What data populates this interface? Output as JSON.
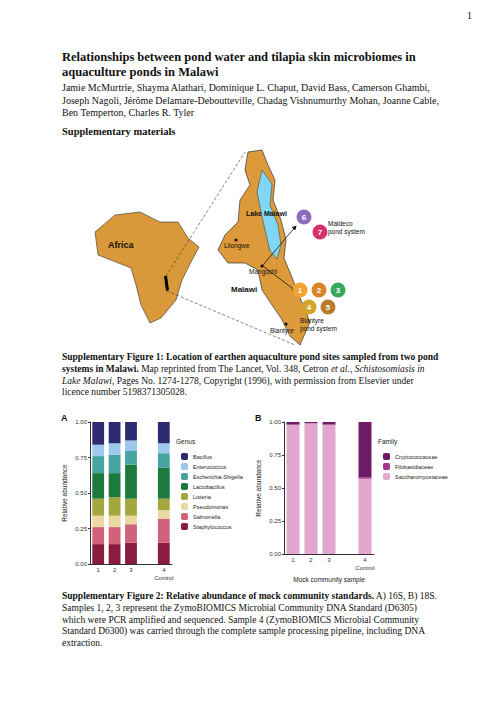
{
  "page_number": "1",
  "title": "Relationships between pond water and tilapia skin microbiomes in aquaculture ponds in Malawi",
  "authors": "Jamie McMurtrie, Shayma Alathari, Dominique L. Chaput, David Bass, Camerson Ghambi, Joseph Nagoli, Jérôme Delamare-Deboutteville, Chadag Vishnumurthy Mohan, Joanne Cable, Ben Temperton, Charles R. Tyler",
  "section": "Supplementary materials",
  "figure1": {
    "map": {
      "labels": {
        "africa": "Africa",
        "lake": "Lake Malawi",
        "capital": "Lilongwe",
        "town": "Mangochi",
        "country": "Malawi",
        "city": "Blantyre",
        "maldeco_system": [
          "Maldeco",
          "pond system"
        ],
        "blantyre_system": [
          "Blantyre",
          "pond system"
        ]
      },
      "sites": [
        {
          "label": "1",
          "color": "#f0a431"
        },
        {
          "label": "2",
          "color": "#d9862a"
        },
        {
          "label": "3",
          "color": "#3aa85a"
        },
        {
          "label": "4",
          "color": "#d4a52a"
        },
        {
          "label": "5",
          "color": "#b97b2c"
        },
        {
          "label": "6",
          "color": "#8e6bbd"
        },
        {
          "label": "7",
          "color": "#d8306c"
        }
      ]
    },
    "caption": [
      {
        "text": "Supplementary Figure 1: Location of earthen aquaculture pond sites sampled from two pond systems in Malawi.",
        "style": "bold"
      },
      {
        "text": " Map reprinted from The Lancet, Vol. 348, Cetron ",
        "style": "normal"
      },
      {
        "text": "et al.",
        "style": "italic"
      },
      {
        "text": ", ",
        "style": "normal"
      },
      {
        "text": "Schistosomiasis in Lake Malawi",
        "style": "italic"
      },
      {
        "text": ", Pages No. 1274-1278, Copyright (1996), with permission from Elsevier under licence number 5198371305028.",
        "style": "normal"
      }
    ]
  },
  "chart_data": [
    {
      "type": "bar",
      "title": "A",
      "stacked": true,
      "grid": false,
      "legend": "right",
      "legend_title": "Genus",
      "y_label": "Relative abundance",
      "categories": [
        "1",
        "2",
        "3",
        null,
        "4"
      ],
      "annotation": "Control",
      "ylim": [
        0,
        1
      ],
      "yticks": [
        {
          "value": 0,
          "label": "0.00"
        },
        {
          "value": 0.25,
          "label": "0.25"
        },
        {
          "value": 0.5,
          "label": "0.50"
        },
        {
          "value": 0.75,
          "label": "0.75"
        },
        {
          "value": 1,
          "label": "1.00"
        }
      ],
      "series": [
        {
          "name": "Bacillus",
          "color": "#2e2a72",
          "values": [
            0.16,
            0.15,
            0.13,
            null,
            0.15
          ]
        },
        {
          "name": "Enterococcus",
          "color": "#9cc9ec",
          "values": [
            0.08,
            0.08,
            0.07,
            null,
            0.07
          ]
        },
        {
          "name": "Escherichia-Shigella",
          "color": "#46a5a0",
          "values": [
            0.12,
            0.13,
            0.1,
            null,
            0.1
          ]
        },
        {
          "name": "Lactobacillus",
          "color": "#1d7a3e",
          "values": [
            0.18,
            0.17,
            0.24,
            null,
            0.22
          ]
        },
        {
          "name": "Listeria",
          "color": "#a3a83e",
          "values": [
            0.12,
            0.13,
            0.12,
            null,
            0.08
          ]
        },
        {
          "name": "Pseudomonas",
          "color": "#ead9a2",
          "values": [
            0.08,
            0.08,
            0.06,
            null,
            0.06
          ]
        },
        {
          "name": "Salmonella",
          "color": "#d2617c",
          "values": [
            0.12,
            0.12,
            0.13,
            null,
            0.17
          ]
        },
        {
          "name": "Staphylococcus",
          "color": "#8a1c3e",
          "values": [
            0.14,
            0.14,
            0.15,
            null,
            0.15
          ]
        }
      ]
    },
    {
      "type": "bar",
      "title": "B",
      "stacked": true,
      "grid": false,
      "legend": "right",
      "legend_title": "Family",
      "y_label": "Relative abundance",
      "x_label": "Mock community sample",
      "categories": [
        "1",
        "2",
        "3",
        null,
        "4"
      ],
      "annotation": "Control",
      "ylim": [
        0,
        1
      ],
      "yticks": [
        {
          "value": 0,
          "label": "0.00"
        },
        {
          "value": 0.25,
          "label": "0.25"
        },
        {
          "value": 0.5,
          "label": "0.50"
        },
        {
          "value": 0.75,
          "label": "0.75"
        },
        {
          "value": 1,
          "label": "1.00"
        }
      ],
      "series": [
        {
          "name": "Cryptococcaceae",
          "color": "#6e1a66",
          "values": [
            0.02,
            0.01,
            0.02,
            null,
            0.42
          ]
        },
        {
          "name": "Filobasidiaceae",
          "color": "#a6378c",
          "values": [
            0,
            0,
            0,
            null,
            0.01
          ]
        },
        {
          "name": "Saccharomycetaceae",
          "color": "#e3a6cf",
          "values": [
            0.98,
            0.99,
            0.98,
            null,
            0.57
          ]
        }
      ]
    }
  ],
  "figure2_caption": [
    {
      "text": "Supplementary Figure 2: Relative abundance of mock community standards.",
      "style": "bold"
    },
    {
      "text": " A) 16S, B) 18S. Samples 1, 2, 3 represent the ZymoBIOMICS Microbial Community DNA Standard (D6305) which were PCR amplified and sequenced. Sample 4 (ZymoBIOMICS Microbial Community Standard D6300) was carried through the complete sample processing pipeline, including DNA extraction.",
      "style": "normal"
    }
  ]
}
